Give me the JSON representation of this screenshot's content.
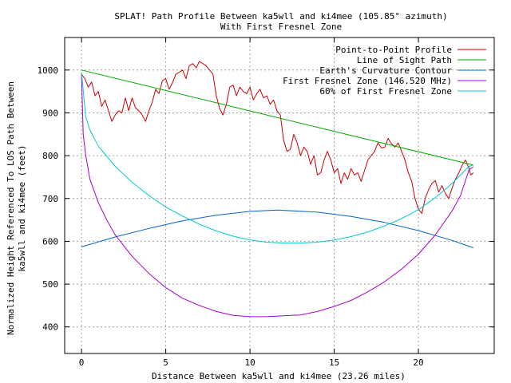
{
  "chart_data": {
    "type": "line",
    "title_line1": "SPLAT! Path Profile Between ka5wll and ki4mee (105.85° azimuth)",
    "title_line2": "With First Fresnel Zone",
    "xlabel": "Distance Between ka5wll and ki4mee (23.26 miles)",
    "ylabel_line1": "Normalized Height Referenced To LOS Path Between",
    "ylabel_line2": "ka5wll and ki4mee (feet)",
    "xlim": [
      -1,
      24.5
    ],
    "ylim": [
      338,
      1076
    ],
    "x_ticks": [
      0,
      5,
      10,
      15,
      20
    ],
    "y_ticks": [
      400,
      500,
      600,
      700,
      800,
      900,
      1000
    ],
    "grid": true,
    "legend_position": "top-right",
    "series": [
      {
        "name": "Point-to-Point Profile",
        "color": "#cc0000",
        "points": [
          [
            0,
            990
          ],
          [
            0.2,
            980
          ],
          [
            0.4,
            960
          ],
          [
            0.6,
            972
          ],
          [
            0.8,
            940
          ],
          [
            1.0,
            950
          ],
          [
            1.2,
            915
          ],
          [
            1.4,
            930
          ],
          [
            1.6,
            905
          ],
          [
            1.8,
            880
          ],
          [
            2.0,
            895
          ],
          [
            2.2,
            905
          ],
          [
            2.4,
            900
          ],
          [
            2.6,
            935
          ],
          [
            2.8,
            905
          ],
          [
            3.0,
            935
          ],
          [
            3.2,
            912
          ],
          [
            3.4,
            905
          ],
          [
            3.6,
            895
          ],
          [
            3.8,
            880
          ],
          [
            4.0,
            905
          ],
          [
            4.2,
            925
          ],
          [
            4.4,
            955
          ],
          [
            4.6,
            945
          ],
          [
            4.8,
            975
          ],
          [
            5.0,
            980
          ],
          [
            5.2,
            955
          ],
          [
            5.4,
            970
          ],
          [
            5.6,
            990
          ],
          [
            5.8,
            995
          ],
          [
            6.0,
            1000
          ],
          [
            6.2,
            980
          ],
          [
            6.4,
            1010
          ],
          [
            6.6,
            1015
          ],
          [
            6.8,
            1005
          ],
          [
            7.0,
            1020
          ],
          [
            7.2,
            1015
          ],
          [
            7.4,
            1010
          ],
          [
            7.6,
            1000
          ],
          [
            7.8,
            990
          ],
          [
            8.0,
            940
          ],
          [
            8.2,
            910
          ],
          [
            8.4,
            895
          ],
          [
            8.6,
            920
          ],
          [
            8.8,
            960
          ],
          [
            9.0,
            965
          ],
          [
            9.2,
            940
          ],
          [
            9.4,
            960
          ],
          [
            9.6,
            950
          ],
          [
            9.8,
            945
          ],
          [
            10.0,
            960
          ],
          [
            10.2,
            930
          ],
          [
            10.4,
            945
          ],
          [
            10.6,
            955
          ],
          [
            10.8,
            935
          ],
          [
            11.0,
            940
          ],
          [
            11.2,
            920
          ],
          [
            11.4,
            930
          ],
          [
            11.6,
            905
          ],
          [
            11.8,
            895
          ],
          [
            12.0,
            835
          ],
          [
            12.2,
            810
          ],
          [
            12.4,
            815
          ],
          [
            12.6,
            850
          ],
          [
            12.8,
            830
          ],
          [
            13.0,
            800
          ],
          [
            13.2,
            820
          ],
          [
            13.4,
            810
          ],
          [
            13.6,
            780
          ],
          [
            13.8,
            800
          ],
          [
            14.0,
            755
          ],
          [
            14.2,
            760
          ],
          [
            14.4,
            790
          ],
          [
            14.6,
            810
          ],
          [
            14.8,
            790
          ],
          [
            15.0,
            760
          ],
          [
            15.2,
            770
          ],
          [
            15.4,
            735
          ],
          [
            15.6,
            760
          ],
          [
            15.8,
            745
          ],
          [
            16.0,
            770
          ],
          [
            16.2,
            755
          ],
          [
            16.4,
            760
          ],
          [
            16.6,
            740
          ],
          [
            16.8,
            765
          ],
          [
            17.0,
            790
          ],
          [
            17.2,
            800
          ],
          [
            17.4,
            810
          ],
          [
            17.6,
            830
          ],
          [
            17.8,
            818
          ],
          [
            18.0,
            820
          ],
          [
            18.2,
            840
          ],
          [
            18.4,
            828
          ],
          [
            18.6,
            820
          ],
          [
            18.8,
            830
          ],
          [
            19.0,
            810
          ],
          [
            19.2,
            790
          ],
          [
            19.4,
            760
          ],
          [
            19.6,
            740
          ],
          [
            19.8,
            700
          ],
          [
            20.0,
            675
          ],
          [
            20.2,
            665
          ],
          [
            20.4,
            700
          ],
          [
            20.6,
            720
          ],
          [
            20.8,
            735
          ],
          [
            21.0,
            742
          ],
          [
            21.2,
            715
          ],
          [
            21.4,
            730
          ],
          [
            21.6,
            712
          ],
          [
            21.8,
            700
          ],
          [
            22.0,
            725
          ],
          [
            22.2,
            745
          ],
          [
            22.4,
            760
          ],
          [
            22.6,
            778
          ],
          [
            22.8,
            790
          ],
          [
            23.0,
            770
          ],
          [
            23.1,
            755
          ],
          [
            23.26,
            760
          ]
        ]
      },
      {
        "name": "Line of Sight Path",
        "color": "#00aa00",
        "points": [
          [
            0,
            1000
          ],
          [
            23.26,
            778
          ]
        ]
      },
      {
        "name": "Earth's Curvature Contour",
        "color": "#0066cc",
        "points": [
          [
            0,
            587
          ],
          [
            2,
            610
          ],
          [
            4,
            630
          ],
          [
            6,
            648
          ],
          [
            8,
            661
          ],
          [
            10,
            670
          ],
          [
            11.63,
            673
          ],
          [
            14,
            668
          ],
          [
            16,
            658
          ],
          [
            18,
            644
          ],
          [
            20,
            625
          ],
          [
            22,
            602
          ],
          [
            23.26,
            585
          ]
        ]
      },
      {
        "name": "First Fresnel Zone (146.520 MHz)",
        "color": "#aa00cc",
        "points": [
          [
            0,
            990
          ],
          [
            0.1,
            850
          ],
          [
            0.25,
            800
          ],
          [
            0.5,
            745
          ],
          [
            1,
            690
          ],
          [
            1.5,
            650
          ],
          [
            2,
            615
          ],
          [
            3,
            565
          ],
          [
            4,
            525
          ],
          [
            5,
            492
          ],
          [
            6,
            467
          ],
          [
            7,
            450
          ],
          [
            8,
            436
          ],
          [
            9,
            427
          ],
          [
            10,
            424
          ],
          [
            11,
            424
          ],
          [
            12,
            426
          ],
          [
            13,
            428
          ],
          [
            14,
            436
          ],
          [
            15,
            448
          ],
          [
            16,
            462
          ],
          [
            17,
            482
          ],
          [
            18,
            506
          ],
          [
            19,
            535
          ],
          [
            20,
            570
          ],
          [
            21,
            615
          ],
          [
            22,
            671
          ],
          [
            22.5,
            707
          ],
          [
            23,
            767
          ],
          [
            23.26,
            774
          ]
        ]
      },
      {
        "name": "60% of First Fresnel Zone",
        "color": "#00cccc",
        "points": [
          [
            0,
            995
          ],
          [
            0.25,
            890
          ],
          [
            0.5,
            860
          ],
          [
            1,
            822
          ],
          [
            2,
            775
          ],
          [
            3,
            738
          ],
          [
            4,
            707
          ],
          [
            5,
            680
          ],
          [
            6,
            659
          ],
          [
            7,
            640
          ],
          [
            8,
            624
          ],
          [
            9,
            612
          ],
          [
            10,
            603
          ],
          [
            11,
            598
          ],
          [
            12,
            596
          ],
          [
            13,
            596
          ],
          [
            14,
            598
          ],
          [
            15,
            603
          ],
          [
            16,
            611
          ],
          [
            17,
            622
          ],
          [
            18,
            636
          ],
          [
            19,
            653
          ],
          [
            20,
            674
          ],
          [
            21,
            702
          ],
          [
            22,
            735
          ],
          [
            23,
            775
          ],
          [
            23.26,
            778
          ]
        ]
      }
    ]
  }
}
